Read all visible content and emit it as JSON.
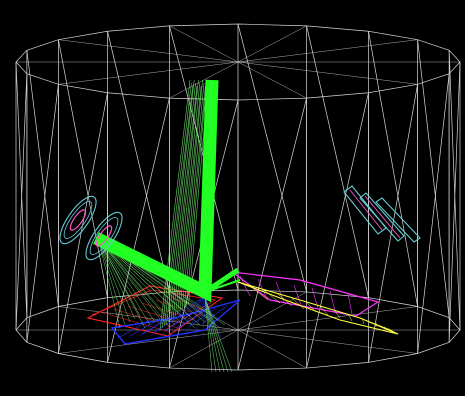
{
  "colors": {
    "background": "#000000",
    "frame": "#ffffff",
    "wireframe": "#d8d8d8",
    "beam_main": "#22ff22",
    "beam_thin": "#7cff7c",
    "mirror_red": "#ff2222",
    "mirror_blue": "#2233ff",
    "mirror_magenta": "#ff33ff",
    "mirror_yellow": "#ffff44",
    "mirror_teal": "#66ccd6",
    "mirror_pink": "#ff55cc"
  },
  "icons": {
    "left_component": "lens-ring-icon",
    "right_component": "plate-detector-icon"
  }
}
